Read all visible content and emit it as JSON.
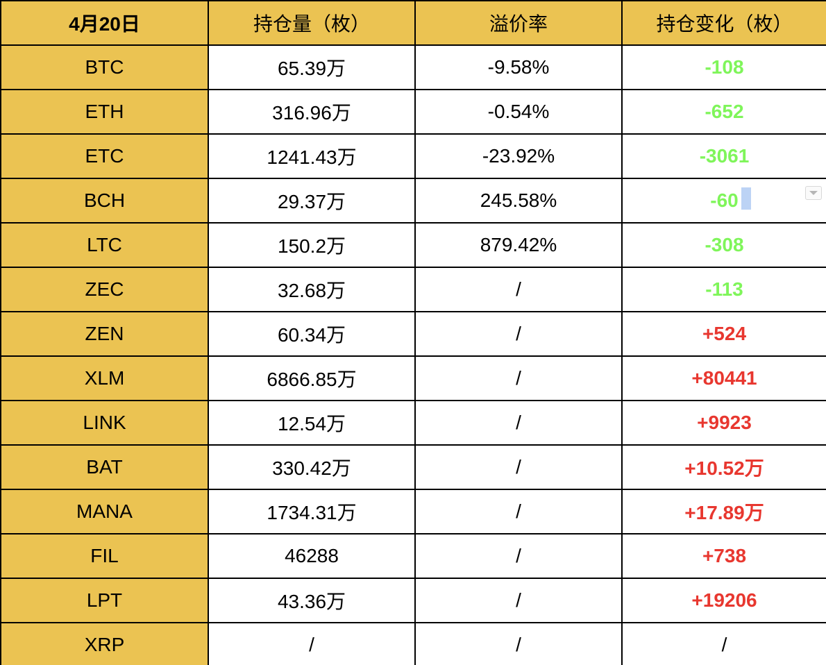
{
  "colors": {
    "header_fill": "#ebc352",
    "coin_fill": "#ebc352",
    "decrease": "#7ff55a",
    "increase": "#e8372f",
    "neutral": "#000000"
  },
  "table": {
    "headers": [
      "4月20日",
      "持仓量（枚）",
      "溢价率",
      "持仓变化（枚）"
    ],
    "rows": [
      {
        "coin": "BTC",
        "holdings": "65.39万",
        "premium": "-9.58%",
        "change": "-108",
        "trend": "down"
      },
      {
        "coin": "ETH",
        "holdings": "316.96万",
        "premium": "-0.54%",
        "change": "-652",
        "trend": "down"
      },
      {
        "coin": "ETC",
        "holdings": "1241.43万",
        "premium": "-23.92%",
        "change": "-3061",
        "trend": "down"
      },
      {
        "coin": "BCH",
        "holdings": "29.37万",
        "premium": "245.58%",
        "change": "-60",
        "trend": "down"
      },
      {
        "coin": "LTC",
        "holdings": "150.2万",
        "premium": "879.42%",
        "change": "-308",
        "trend": "down"
      },
      {
        "coin": "ZEC",
        "holdings": "32.68万",
        "premium": "/",
        "change": "-113",
        "trend": "down"
      },
      {
        "coin": "ZEN",
        "holdings": "60.34万",
        "premium": "/",
        "change": "+524",
        "trend": "up"
      },
      {
        "coin": "XLM",
        "holdings": "6866.85万",
        "premium": "/",
        "change": "+80441",
        "trend": "up"
      },
      {
        "coin": "LINK",
        "holdings": "12.54万",
        "premium": "/",
        "change": "+9923",
        "trend": "up"
      },
      {
        "coin": "BAT",
        "holdings": "330.42万",
        "premium": "/",
        "change": "+10.52万",
        "trend": "up"
      },
      {
        "coin": "MANA",
        "holdings": "1734.31万",
        "premium": "/",
        "change": "+17.89万",
        "trend": "up"
      },
      {
        "coin": "FIL",
        "holdings": "46288",
        "premium": "/",
        "change": "+738",
        "trend": "up"
      },
      {
        "coin": "LPT",
        "holdings": "43.36万",
        "premium": "/",
        "change": "+19206",
        "trend": "up"
      },
      {
        "coin": "XRP",
        "holdings": "/",
        "premium": "/",
        "change": "/",
        "trend": "none"
      }
    ]
  },
  "editing": {
    "active_row": 3,
    "dropdown_icon": "chevron-down-icon"
  }
}
